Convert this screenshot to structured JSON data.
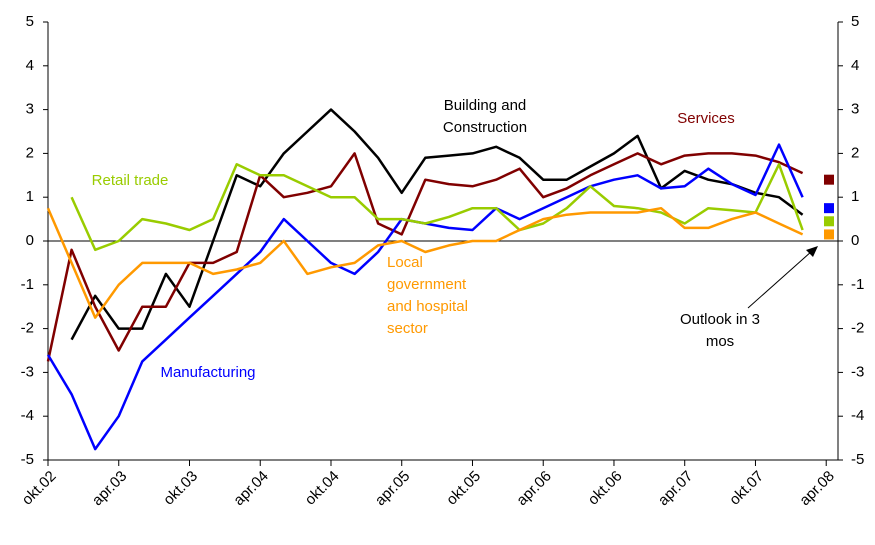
{
  "chart_data": {
    "type": "line",
    "x": [
      0,
      2,
      4,
      6,
      8,
      10,
      12,
      14,
      16,
      18,
      20,
      22,
      24,
      26,
      28,
      30,
      32,
      34,
      36,
      38,
      40,
      42,
      44,
      46,
      48,
      50,
      52,
      54,
      56,
      58,
      60,
      62,
      64
    ],
    "xlim": [
      0,
      67
    ],
    "xticks": [
      {
        "value": 0,
        "label": "okt.02"
      },
      {
        "value": 6,
        "label": "apr.03"
      },
      {
        "value": 12,
        "label": "okt.03"
      },
      {
        "value": 18,
        "label": "apr.04"
      },
      {
        "value": 24,
        "label": "okt.04"
      },
      {
        "value": 30,
        "label": "apr.05"
      },
      {
        "value": 36,
        "label": "okt.05"
      },
      {
        "value": 42,
        "label": "apr.06"
      },
      {
        "value": 48,
        "label": "okt.06"
      },
      {
        "value": 54,
        "label": "apr.07"
      },
      {
        "value": 60,
        "label": "okt.07"
      },
      {
        "value": 66,
        "label": "apr.08"
      }
    ],
    "ylim": [
      -5,
      5
    ],
    "yticks": [
      -5,
      -4,
      -3,
      -2,
      -1,
      0,
      1,
      2,
      3,
      4,
      5
    ],
    "y2lim": [
      -5,
      5
    ],
    "y2ticks": [
      -5,
      -4,
      -3,
      -2,
      -1,
      0,
      1,
      2,
      3,
      4,
      5
    ],
    "series": [
      {
        "name": "Building and Construction",
        "color": "#000000",
        "values": [
          null,
          -2.25,
          -1.25,
          -2,
          -2,
          -0.75,
          -1.5,
          0,
          1.5,
          1.25,
          2,
          2.5,
          3,
          2.5,
          1.9,
          1.1,
          1.9,
          1.95,
          2,
          2.15,
          1.9,
          1.4,
          1.4,
          1.7,
          2.0,
          2.4,
          1.2,
          1.6,
          1.4,
          1.3,
          1.1,
          1.0,
          0.6
        ]
      },
      {
        "name": "Services",
        "color": "#800000",
        "outlook": 1.4,
        "values": [
          -2.75,
          -0.2,
          -1.5,
          -2.5,
          -1.5,
          -1.5,
          -0.5,
          -0.5,
          -0.25,
          1.5,
          1.0,
          1.1,
          1.25,
          2.0,
          0.4,
          0.15,
          1.4,
          1.3,
          1.25,
          1.4,
          1.65,
          1.0,
          1.2,
          1.5,
          1.75,
          2.0,
          1.75,
          1.95,
          2.0,
          2.0,
          1.95,
          1.8,
          1.55
        ]
      },
      {
        "name": "Manufacturing",
        "color": "#0000ff",
        "outlook": 0.75,
        "values": [
          -2.6,
          -3.5,
          -4.75,
          -4.0,
          -2.75,
          -2.25,
          -1.75,
          -1.25,
          -0.75,
          -0.25,
          0.5,
          0,
          -0.5,
          -0.75,
          -0.25,
          0.5,
          0.4,
          0.3,
          0.25,
          0.75,
          0.5,
          0.75,
          1.0,
          1.25,
          1.4,
          1.5,
          1.2,
          1.25,
          1.65,
          1.3,
          1.05,
          2.2,
          1.0
        ]
      },
      {
        "name": "Retail trade",
        "color": "#99cc00",
        "outlook": 0.45,
        "values": [
          null,
          1.0,
          -0.2,
          0,
          0.5,
          0.4,
          0.25,
          0.5,
          1.75,
          1.5,
          1.5,
          1.25,
          1.0,
          1.0,
          0.5,
          0.5,
          0.4,
          0.55,
          0.75,
          0.75,
          0.25,
          0.4,
          0.75,
          1.25,
          0.8,
          0.75,
          0.65,
          0.4,
          0.75,
          0.7,
          0.65,
          1.75,
          0.25
        ]
      },
      {
        "name": "Local government and hospital sector",
        "color": "#ff9900",
        "outlook": 0.15,
        "values": [
          0.75,
          -0.5,
          -1.75,
          -1.0,
          -0.5,
          -0.5,
          -0.5,
          -0.75,
          -0.65,
          -0.5,
          0,
          -0.75,
          -0.6,
          -0.5,
          -0.1,
          0,
          -0.25,
          -0.1,
          0,
          0,
          0.25,
          0.5,
          0.6,
          0.65,
          0.65,
          0.65,
          0.75,
          0.3,
          0.3,
          0.5,
          0.65,
          0.4,
          0.15
        ]
      }
    ],
    "annotations": [
      {
        "lines": [
          "Building and",
          "Construction"
        ],
        "color": "#000000"
      },
      {
        "lines": [
          "Services"
        ],
        "color": "#800000"
      },
      {
        "lines": [
          "Retail trade"
        ],
        "color": "#99cc00"
      },
      {
        "lines": [
          "Local",
          "government",
          "and hospital",
          "sector"
        ],
        "color": "#ff9900"
      },
      {
        "lines": [
          "Manufacturing"
        ],
        "color": "#0000ff"
      },
      {
        "lines": [
          "Outlook in 3",
          "mos"
        ],
        "color": "#000000"
      }
    ]
  }
}
